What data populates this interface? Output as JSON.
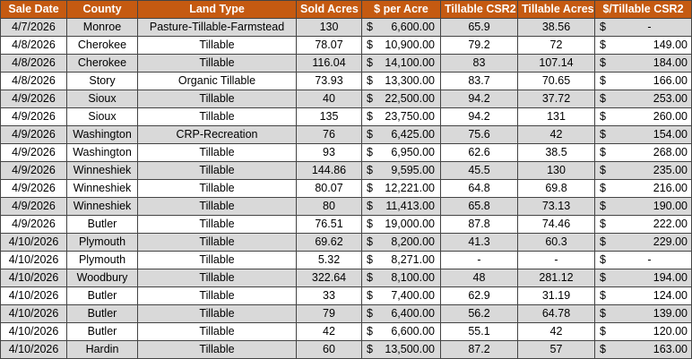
{
  "table": {
    "headers": [
      "Sale Date",
      "County",
      "Land Type",
      "Sold Acres",
      "$ per Acre",
      "Tillable CSR2",
      "Tillable Acres",
      "$/Tillable CSR2"
    ],
    "currency_symbol": "$",
    "rows": [
      {
        "date": "4/7/2026",
        "county": "Monroe",
        "land_type": "Pasture-Tillable-Farmstead",
        "acres": "130",
        "per_acre": "6,600.00",
        "csr2": "65.9",
        "tillable_acres": "38.56",
        "per_csr2": "-",
        "shade": true
      },
      {
        "date": "4/8/2026",
        "county": "Cherokee",
        "land_type": "Tillable",
        "acres": "78.07",
        "per_acre": "10,900.00",
        "csr2": "79.2",
        "tillable_acres": "72",
        "per_csr2": "149.00",
        "shade": false
      },
      {
        "date": "4/8/2026",
        "county": "Cherokee",
        "land_type": "Tillable",
        "acres": "116.04",
        "per_acre": "14,100.00",
        "csr2": "83",
        "tillable_acres": "107.14",
        "per_csr2": "184.00",
        "shade": true
      },
      {
        "date": "4/8/2026",
        "county": "Story",
        "land_type": "Organic Tillable",
        "acres": "73.93",
        "per_acre": "13,300.00",
        "csr2": "83.7",
        "tillable_acres": "70.65",
        "per_csr2": "166.00",
        "shade": false
      },
      {
        "date": "4/9/2026",
        "county": "Sioux",
        "land_type": "Tillable",
        "acres": "40",
        "per_acre": "22,500.00",
        "csr2": "94.2",
        "tillable_acres": "37.72",
        "per_csr2": "253.00",
        "shade": true
      },
      {
        "date": "4/9/2026",
        "county": "Sioux",
        "land_type": "Tillable",
        "acres": "135",
        "per_acre": "23,750.00",
        "csr2": "94.2",
        "tillable_acres": "131",
        "per_csr2": "260.00",
        "shade": false
      },
      {
        "date": "4/9/2026",
        "county": "Washington",
        "land_type": "CRP-Recreation",
        "acres": "76",
        "per_acre": "6,425.00",
        "csr2": "75.6",
        "tillable_acres": "42",
        "per_csr2": "154.00",
        "shade": true
      },
      {
        "date": "4/9/2026",
        "county": "Washington",
        "land_type": "Tillable",
        "acres": "93",
        "per_acre": "6,950.00",
        "csr2": "62.6",
        "tillable_acres": "38.5",
        "per_csr2": "268.00",
        "shade": false
      },
      {
        "date": "4/9/2026",
        "county": "Winneshiek",
        "land_type": "Tillable",
        "acres": "144.86",
        "per_acre": "9,595.00",
        "csr2": "45.5",
        "tillable_acres": "130",
        "per_csr2": "235.00",
        "shade": true
      },
      {
        "date": "4/9/2026",
        "county": "Winneshiek",
        "land_type": "Tillable",
        "acres": "80.07",
        "per_acre": "12,221.00",
        "csr2": "64.8",
        "tillable_acres": "69.8",
        "per_csr2": "216.00",
        "shade": false
      },
      {
        "date": "4/9/2026",
        "county": "Winneshiek",
        "land_type": "Tillable",
        "acres": "80",
        "per_acre": "11,413.00",
        "csr2": "65.8",
        "tillable_acres": "73.13",
        "per_csr2": "190.00",
        "shade": true
      },
      {
        "date": "4/9/2026",
        "county": "Butler",
        "land_type": "Tillable",
        "acres": "76.51",
        "per_acre": "19,000.00",
        "csr2": "87.8",
        "tillable_acres": "74.46",
        "per_csr2": "222.00",
        "shade": false
      },
      {
        "date": "4/10/2026",
        "county": "Plymouth",
        "land_type": "Tillable",
        "acres": "69.62",
        "per_acre": "8,200.00",
        "csr2": "41.3",
        "tillable_acres": "60.3",
        "per_csr2": "229.00",
        "shade": true
      },
      {
        "date": "4/10/2026",
        "county": "Plymouth",
        "land_type": "Tillable",
        "acres": "5.32",
        "per_acre": "8,271.00",
        "csr2": "-",
        "tillable_acres": "-",
        "per_csr2": "-",
        "shade": false
      },
      {
        "date": "4/10/2026",
        "county": "Woodbury",
        "land_type": "Tillable",
        "acres": "322.64",
        "per_acre": "8,100.00",
        "csr2": "48",
        "tillable_acres": "281.12",
        "per_csr2": "194.00",
        "shade": true
      },
      {
        "date": "4/10/2026",
        "county": "Butler",
        "land_type": "Tillable",
        "acres": "33",
        "per_acre": "7,400.00",
        "csr2": "62.9",
        "tillable_acres": "31.19",
        "per_csr2": "124.00",
        "shade": false
      },
      {
        "date": "4/10/2026",
        "county": "Butler",
        "land_type": "Tillable",
        "acres": "79",
        "per_acre": "6,400.00",
        "csr2": "56.2",
        "tillable_acres": "64.78",
        "per_csr2": "139.00",
        "shade": true
      },
      {
        "date": "4/10/2026",
        "county": "Butler",
        "land_type": "Tillable",
        "acres": "42",
        "per_acre": "6,600.00",
        "csr2": "55.1",
        "tillable_acres": "42",
        "per_csr2": "120.00",
        "shade": false
      },
      {
        "date": "4/10/2026",
        "county": "Hardin",
        "land_type": "Tillable",
        "acres": "60",
        "per_acre": "13,500.00",
        "csr2": "87.2",
        "tillable_acres": "57",
        "per_csr2": "163.00",
        "shade": true
      }
    ]
  },
  "colors": {
    "header_bg": "#c55a11",
    "header_text": "#ffffff",
    "shaded_row": "#d9d9d9",
    "plain_row": "#ffffff",
    "border": "#444444"
  }
}
